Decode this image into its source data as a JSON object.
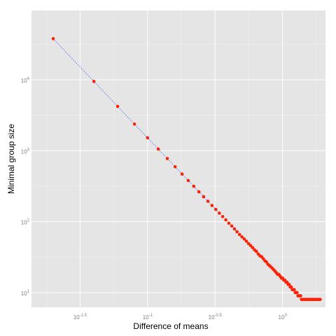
{
  "chart_data": {
    "type": "scatter",
    "xlabel": "Difference of means",
    "ylabel": "Minimal group size",
    "x_scale": "log10",
    "y_scale": "log10",
    "xlim": [
      0.0138,
      2.08
    ],
    "ylim": [
      6.2,
      95000
    ],
    "x_ticks": [
      {
        "value": 0.031623,
        "base": "10",
        "exp": "-1.5"
      },
      {
        "value": 0.1,
        "base": "10",
        "exp": "-1"
      },
      {
        "value": 0.316228,
        "base": "10",
        "exp": "-0.5"
      },
      {
        "value": 1,
        "base": "10",
        "exp": "0"
      }
    ],
    "y_ticks": [
      {
        "value": 10,
        "base": "10",
        "exp": "1"
      },
      {
        "value": 100,
        "base": "10",
        "exp": "2"
      },
      {
        "value": 1000,
        "base": "10",
        "exp": "3"
      },
      {
        "value": 10000,
        "base": "10",
        "exp": "4"
      }
    ],
    "grid": true,
    "background": "#e5e5e5",
    "grid_color": "#ffffff",
    "point_color": "#f8240a",
    "line_color": "#3b5cf0",
    "line_style": "dotted",
    "formula": {
      "n_coef": 15.2,
      "n_exp": -2,
      "n_min": 8
    },
    "x_values": [
      0.02,
      0.04,
      0.06,
      0.08,
      0.1,
      0.12,
      0.14,
      0.16,
      0.18,
      0.2,
      0.22,
      0.24,
      0.26,
      0.28,
      0.3,
      0.32,
      0.34,
      0.36,
      0.38,
      0.4,
      0.42,
      0.44,
      0.46,
      0.48,
      0.5,
      0.52,
      0.54,
      0.56,
      0.58,
      0.6,
      0.62,
      0.64,
      0.66,
      0.68,
      0.7,
      0.72,
      0.74,
      0.76,
      0.78,
      0.8,
      0.82,
      0.84,
      0.86,
      0.88,
      0.9,
      0.92,
      0.94,
      0.96,
      0.98,
      1.0,
      1.02,
      1.04,
      1.06,
      1.08,
      1.1,
      1.12,
      1.14,
      1.16,
      1.18,
      1.2,
      1.22,
      1.24,
      1.26,
      1.28,
      1.3,
      1.32,
      1.34,
      1.36,
      1.38,
      1.4,
      1.42,
      1.44,
      1.46,
      1.48,
      1.5,
      1.52,
      1.54,
      1.56,
      1.58,
      1.6,
      1.62,
      1.64,
      1.66,
      1.68,
      1.7,
      1.72,
      1.74,
      1.76,
      1.78,
      1.8,
      1.82,
      1.84,
      1.86,
      1.88,
      1.9
    ]
  }
}
